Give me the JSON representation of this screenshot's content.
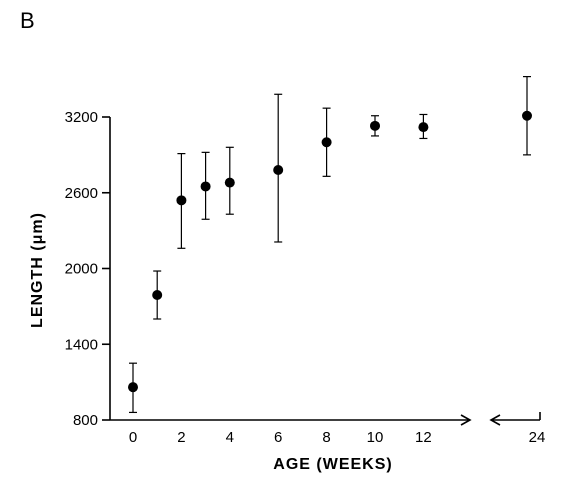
{
  "panel_label": "B",
  "chart_data": {
    "type": "scatter",
    "title": "",
    "xlabel": "AGE (WEEKS)",
    "ylabel": "LENGTH (μm)",
    "ylim": [
      800,
      3300
    ],
    "y_ticks": [
      800,
      1400,
      2000,
      2600,
      3200
    ],
    "x_ticks": [
      0,
      2,
      4,
      6,
      8,
      10,
      12,
      24
    ],
    "x_axis_break": "between 12 and 24",
    "error_bars": true,
    "grid": false,
    "series": [
      {
        "points": [
          {
            "x": 0,
            "y": 1060,
            "err_low": 860,
            "err_high": 1250
          },
          {
            "x": 1,
            "y": 1790,
            "err_low": 1600,
            "err_high": 1980
          },
          {
            "x": 2,
            "y": 2540,
            "err_low": 2160,
            "err_high": 2910
          },
          {
            "x": 3,
            "y": 2650,
            "err_low": 2390,
            "err_high": 2920
          },
          {
            "x": 4,
            "y": 2680,
            "err_low": 2430,
            "err_high": 2960
          },
          {
            "x": 6,
            "y": 2780,
            "err_low": 2210,
            "err_high": 3380
          },
          {
            "x": 8,
            "y": 3000,
            "err_low": 2730,
            "err_high": 3270
          },
          {
            "x": 10,
            "y": 3130,
            "err_low": 3050,
            "err_high": 3210
          },
          {
            "x": 12,
            "y": 3120,
            "err_low": 3030,
            "err_high": 3220
          },
          {
            "x": 24,
            "y": 3210,
            "err_low": 2900,
            "err_high": 3520
          }
        ]
      }
    ]
  }
}
